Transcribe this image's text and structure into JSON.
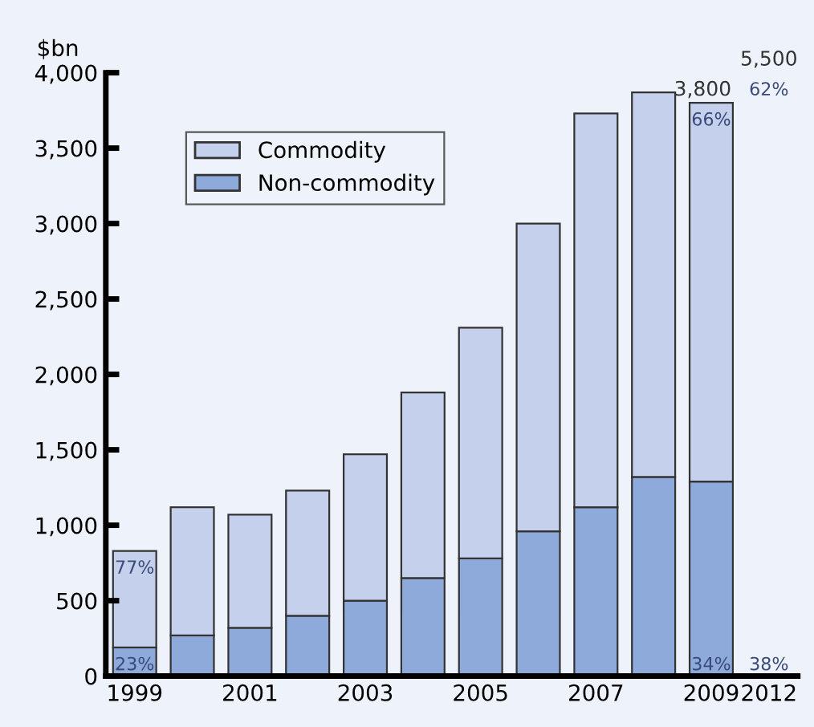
{
  "chart_data": {
    "type": "bar",
    "stacked": true,
    "ylabel": "$bn",
    "categories": [
      "1999",
      null,
      "2001",
      null,
      "2003",
      null,
      "2005",
      null,
      "2007",
      null,
      "2009",
      "2012"
    ],
    "series": [
      {
        "name": "Non-commodity",
        "color": "#8eaadb",
        "values": [
          190,
          270,
          320,
          400,
          500,
          650,
          780,
          960,
          1120,
          1320,
          1290,
          null
        ]
      },
      {
        "name": "Commodity",
        "color": "#c5d0ec",
        "values": [
          640,
          850,
          750,
          830,
          970,
          1230,
          1530,
          2040,
          2610,
          2550,
          2510,
          null
        ]
      }
    ],
    "totals": [
      null,
      null,
      null,
      null,
      null,
      null,
      null,
      null,
      null,
      null,
      "3,800",
      null
    ],
    "annotations": [
      "77%",
      "23%",
      "66%",
      "34%",
      "5,500",
      "62%",
      "38%"
    ],
    "ylim": [
      0,
      4000
    ],
    "yticks": [
      {
        "value": 0,
        "label": "0"
      },
      {
        "value": 500,
        "label": "500"
      },
      {
        "value": 1000,
        "label": "1,000"
      },
      {
        "value": 1500,
        "label": "1,500"
      },
      {
        "value": 2000,
        "label": "2,000"
      },
      {
        "value": 2500,
        "label": "2,500"
      },
      {
        "value": 3000,
        "label": "3,000"
      },
      {
        "value": 3500,
        "label": "3,500"
      },
      {
        "value": 4000,
        "label": "4,000"
      }
    ],
    "grid": false,
    "legend": "top left"
  }
}
